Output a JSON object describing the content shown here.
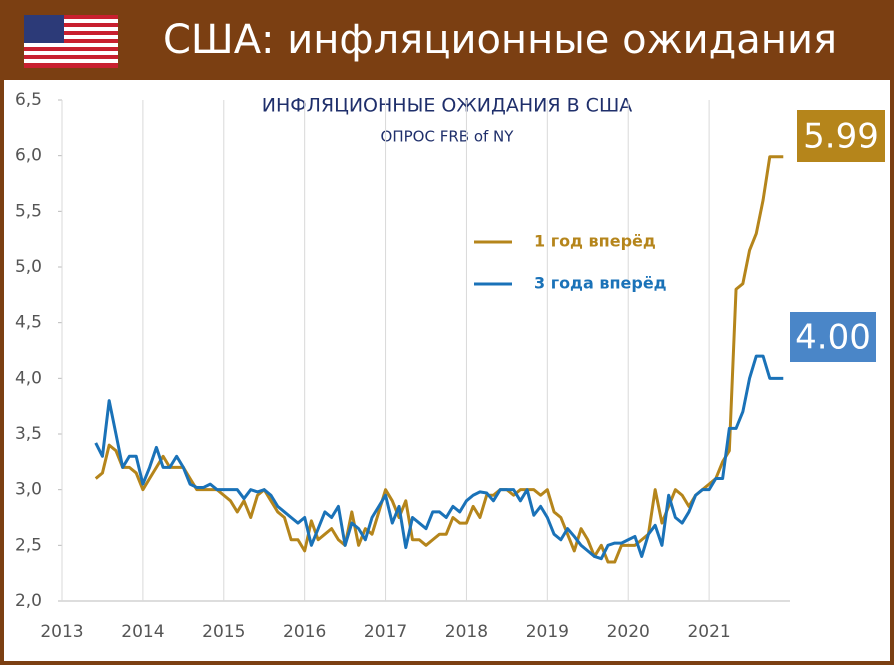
{
  "header": {
    "title": "США: инфляционные ожидания"
  },
  "chart_data": {
    "type": "line",
    "title": "ИНФЛЯЦИОННЫЕ ОЖИДАНИЯ В США",
    "subtitle": "ОПРОС FRB of NY",
    "x": [
      2013.417,
      2013.5,
      2013.583,
      2013.667,
      2013.75,
      2013.833,
      2013.917,
      2014,
      2014.083,
      2014.167,
      2014.25,
      2014.333,
      2014.417,
      2014.5,
      2014.583,
      2014.667,
      2014.75,
      2014.833,
      2014.917,
      2015,
      2015.083,
      2015.167,
      2015.25,
      2015.333,
      2015.417,
      2015.5,
      2015.583,
      2015.667,
      2015.75,
      2015.833,
      2015.917,
      2016,
      2016.083,
      2016.167,
      2016.25,
      2016.333,
      2016.417,
      2016.5,
      2016.583,
      2016.667,
      2016.75,
      2016.833,
      2016.917,
      2017,
      2017.083,
      2017.167,
      2017.25,
      2017.333,
      2017.417,
      2017.5,
      2017.583,
      2017.667,
      2017.75,
      2017.833,
      2017.917,
      2018,
      2018.083,
      2018.167,
      2018.25,
      2018.333,
      2018.417,
      2018.5,
      2018.583,
      2018.667,
      2018.75,
      2018.833,
      2018.917,
      2019,
      2019.083,
      2019.167,
      2019.25,
      2019.333,
      2019.417,
      2019.5,
      2019.583,
      2019.667,
      2019.75,
      2019.833,
      2019.917,
      2020,
      2020.083,
      2020.167,
      2020.25,
      2020.333,
      2020.417,
      2020.5,
      2020.583,
      2020.667,
      2020.75,
      2020.833,
      2020.917,
      2021,
      2021.083,
      2021.167,
      2021.25,
      2021.333,
      2021.417,
      2021.5,
      2021.583,
      2021.667,
      2021.75,
      2021.833,
      2021.917
    ],
    "series": [
      {
        "name": "1 год вперёд",
        "color": "#b5851b",
        "values": [
          3.1,
          3.15,
          3.4,
          3.35,
          3.2,
          3.2,
          3.15,
          3.0,
          3.1,
          3.2,
          3.3,
          3.2,
          3.2,
          3.2,
          3.1,
          3.0,
          3.0,
          3.0,
          3.0,
          2.95,
          2.9,
          2.8,
          2.9,
          2.75,
          2.95,
          3.0,
          2.9,
          2.8,
          2.75,
          2.55,
          2.55,
          2.45,
          2.72,
          2.55,
          2.6,
          2.65,
          2.55,
          2.5,
          2.8,
          2.5,
          2.65,
          2.6,
          2.8,
          3.0,
          2.9,
          2.75,
          2.9,
          2.55,
          2.55,
          2.5,
          2.55,
          2.6,
          2.6,
          2.75,
          2.7,
          2.7,
          2.85,
          2.75,
          2.95,
          2.95,
          3.0,
          3.0,
          2.95,
          3.0,
          3.0,
          3.0,
          2.95,
          3.0,
          2.8,
          2.75,
          2.6,
          2.45,
          2.65,
          2.55,
          2.4,
          2.5,
          2.35,
          2.35,
          2.5,
          2.5,
          2.5,
          2.55,
          2.6,
          3.0,
          2.7,
          2.85,
          3.0,
          2.95,
          2.85,
          2.95,
          3.0,
          3.05,
          3.1,
          3.25,
          3.35,
          4.8,
          4.85,
          5.15,
          5.3,
          5.6,
          5.99,
          5.99,
          5.99
        ]
      },
      {
        "name": "3 года вперёд",
        "color": "#1a72b8",
        "values": [
          3.42,
          3.3,
          3.8,
          3.5,
          3.2,
          3.3,
          3.3,
          3.05,
          3.2,
          3.38,
          3.2,
          3.2,
          3.3,
          3.2,
          3.05,
          3.02,
          3.02,
          3.05,
          3.0,
          3.0,
          3.0,
          3.0,
          2.92,
          3.0,
          2.98,
          3.0,
          2.95,
          2.85,
          2.8,
          2.75,
          2.7,
          2.75,
          2.5,
          2.65,
          2.8,
          2.75,
          2.85,
          2.5,
          2.7,
          2.65,
          2.55,
          2.75,
          2.85,
          2.95,
          2.7,
          2.85,
          2.48,
          2.75,
          2.7,
          2.65,
          2.8,
          2.8,
          2.75,
          2.85,
          2.8,
          2.9,
          2.95,
          2.98,
          2.97,
          2.9,
          3.0,
          3.0,
          3.0,
          2.9,
          3.0,
          2.77,
          2.85,
          2.75,
          2.6,
          2.55,
          2.65,
          2.58,
          2.5,
          2.45,
          2.4,
          2.38,
          2.5,
          2.52,
          2.52,
          2.55,
          2.58,
          2.4,
          2.6,
          2.68,
          2.5,
          2.95,
          2.75,
          2.7,
          2.8,
          2.95,
          3.0,
          3.0,
          3.1,
          3.1,
          3.55,
          3.55,
          3.7,
          4.0,
          4.2,
          4.2,
          4.0,
          4.0,
          4.0
        ]
      }
    ],
    "annotations": [
      {
        "text": "5.99",
        "color": "#b5851b"
      },
      {
        "text": "4.00",
        "color": "#4a86c8"
      }
    ],
    "xlim": [
      2013,
      2022
    ],
    "xticks": [
      2013,
      2014,
      2015,
      2016,
      2017,
      2018,
      2019,
      2020,
      2021
    ],
    "ylim": [
      2.0,
      6.5
    ],
    "yticks": [
      {
        "value": 2.0,
        "label": "2,0"
      },
      {
        "value": 2.5,
        "label": "2,5"
      },
      {
        "value": 3.0,
        "label": "3,0"
      },
      {
        "value": 3.5,
        "label": "3,5"
      },
      {
        "value": 4.0,
        "label": "4,0"
      },
      {
        "value": 4.5,
        "label": "4,5"
      },
      {
        "value": 5.0,
        "label": "5,0"
      },
      {
        "value": 5.5,
        "label": "5,5"
      },
      {
        "value": 6.0,
        "label": "6,0"
      },
      {
        "value": 6.5,
        "label": "6,5"
      }
    ],
    "grid": true
  }
}
